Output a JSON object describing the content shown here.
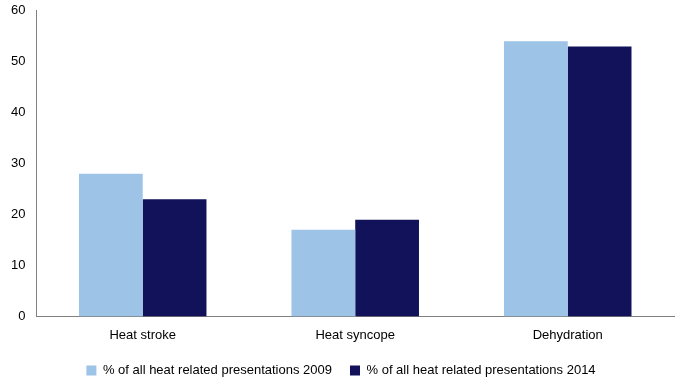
{
  "chart_data": {
    "type": "bar",
    "categories": [
      "Heat stroke",
      "Heat syncope",
      "Dehydration"
    ],
    "series": [
      {
        "name": "% of all heat related presentations 2009",
        "color": "#9dc3e6",
        "values": [
          28,
          17,
          54
        ]
      },
      {
        "name": "% of all heat related presentations 2014",
        "color": "#12125a",
        "values": [
          23,
          19,
          53
        ]
      }
    ],
    "ylim": [
      0,
      60
    ],
    "yticks": [
      0,
      10,
      20,
      30,
      40,
      50,
      60
    ],
    "grid": false,
    "legend": "bottom"
  }
}
